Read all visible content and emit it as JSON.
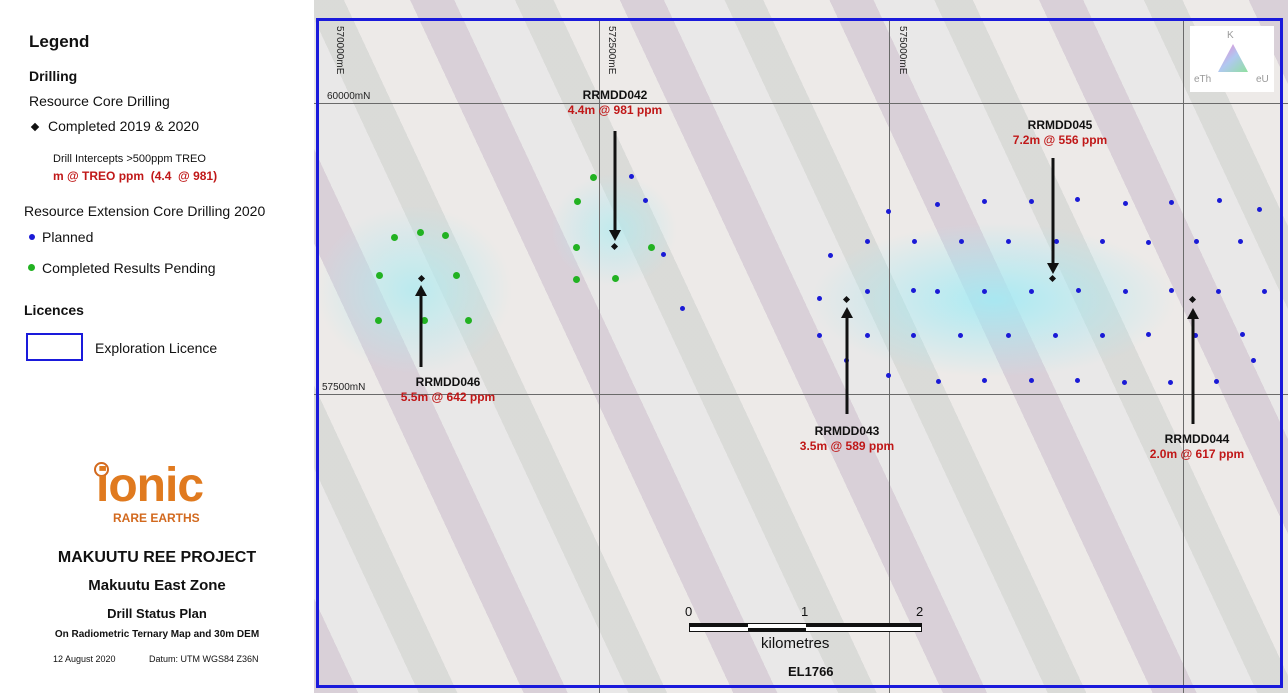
{
  "legend": {
    "title": "Legend",
    "drilling_heading": "Drilling",
    "resource_core": "Resource Core Drilling",
    "completed_2019_2020": "Completed 2019 & 2020",
    "intercepts_label": "Drill Intercepts >500ppm TREO",
    "intercepts_format": "m @ TREO ppm  (4.4  @ 981)",
    "extension_heading": "Resource Extension Core Drilling 2020",
    "planned": "Planned",
    "completed_pending": "Completed Results Pending",
    "licences_heading": "Licences",
    "exploration_licence": "Exploration Licence"
  },
  "logo": {
    "brand": "ionic",
    "sub": "RARE EARTHS"
  },
  "project": {
    "name": "MAKUUTU REE PROJECT",
    "zone": "Makuutu East Zone",
    "plan": "Drill Status Plan",
    "basemap": "On Radiometric Ternary Map and 30m DEM",
    "date": "12 August 2020",
    "datum": "Datum: UTM WGS84 Z36N"
  },
  "grid": {
    "e1": "570000mE",
    "e2": "572500mE",
    "e3": "575000mE",
    "n1": "60000mN",
    "n2": "57500mN"
  },
  "ternary": {
    "k": "K",
    "eth": "eTh",
    "eu": "eU"
  },
  "holes": {
    "h042": {
      "name": "RRMDD042",
      "intercept": "4.4m @ 981 ppm"
    },
    "h045": {
      "name": "RRMDD045",
      "intercept": "7.2m @ 556 ppm"
    },
    "h046": {
      "name": "RRMDD046",
      "intercept": "5.5m @ 642 ppm"
    },
    "h043": {
      "name": "RRMDD043",
      "intercept": "3.5m @ 589 ppm"
    },
    "h044": {
      "name": "RRMDD044",
      "intercept": "2.0m @ 617 ppm"
    }
  },
  "scale": {
    "t0": "0",
    "t1": "1",
    "t2": "2",
    "unit": "kilometres"
  },
  "licence_id": "EL1766",
  "colors": {
    "planned": "#1a1ad6",
    "pending": "#22b222",
    "intercept": "#c01818",
    "licence": "#1a1adb"
  }
}
